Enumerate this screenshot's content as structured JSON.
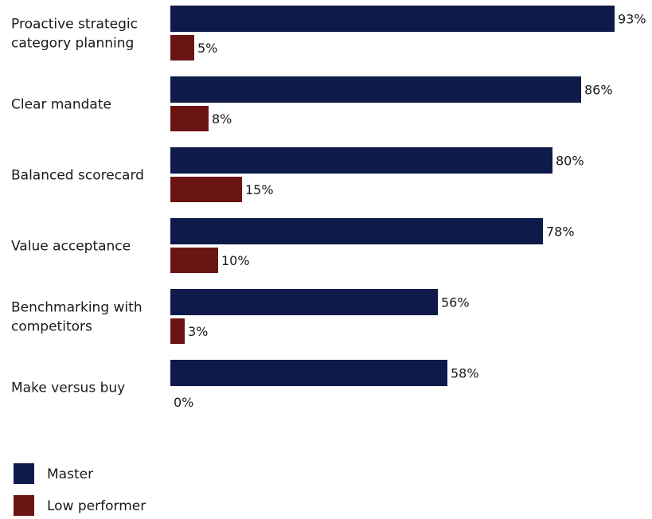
{
  "chart_data": {
    "type": "bar",
    "orientation": "horizontal",
    "categories": [
      [
        "Proactive strategic",
        "category planning"
      ],
      [
        "Clear mandate"
      ],
      [
        "Balanced scorecard"
      ],
      [
        "Value acceptance"
      ],
      [
        "Benchmarking with",
        "competitors"
      ],
      [
        "Make versus buy"
      ]
    ],
    "series": [
      {
        "name": "Master",
        "color": "#0e1a4a",
        "values": [
          93,
          86,
          80,
          78,
          56,
          58
        ],
        "labels": [
          "93%",
          "86%",
          "80%",
          "78%",
          "56%",
          "58%"
        ]
      },
      {
        "name": "Low performer",
        "color": "#6b1414",
        "values": [
          5,
          8,
          15,
          10,
          3,
          0
        ],
        "labels": [
          "5%",
          "8%",
          "15%",
          "10%",
          "3%",
          "0%"
        ]
      }
    ],
    "xlim": [
      0,
      100
    ],
    "grid": false,
    "axes_visible": false,
    "legend_position": "bottom-left"
  }
}
